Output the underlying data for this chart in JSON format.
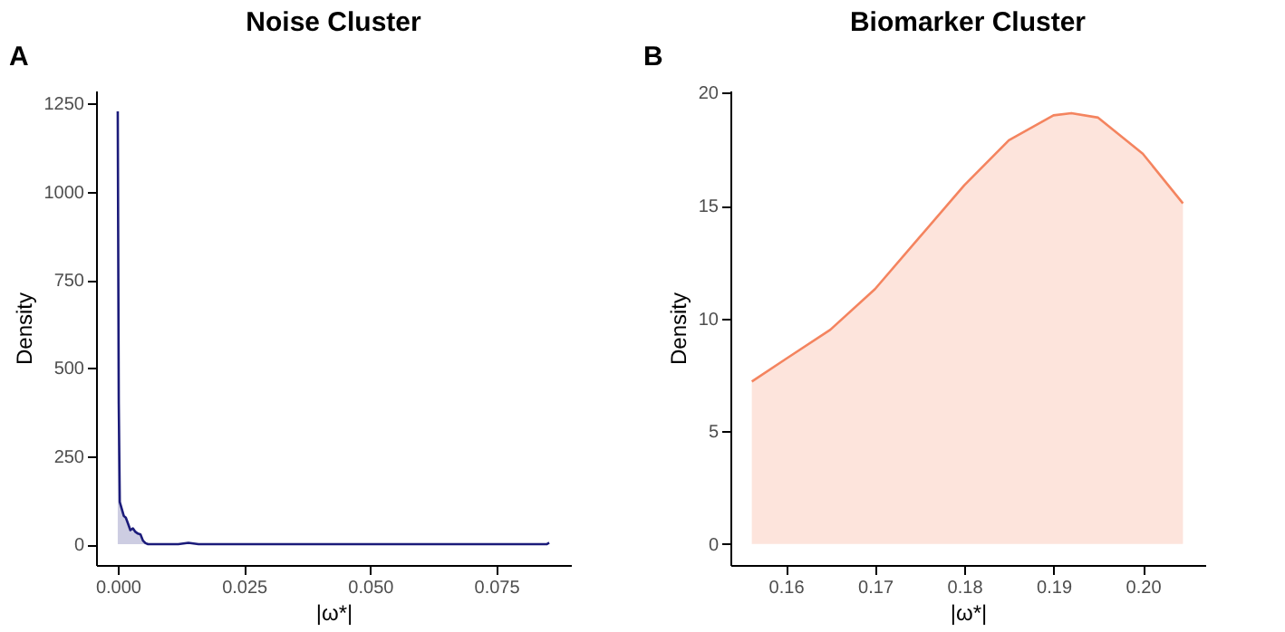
{
  "chart_data": [
    {
      "type": "area",
      "title": "Noise Cluster",
      "xlabel": "|ω*|",
      "ylabel": "Density",
      "annotations": [
        "A"
      ],
      "x": [
        0.0,
        0.0002,
        0.0004,
        0.0008,
        0.0012,
        0.0016,
        0.002,
        0.0025,
        0.003,
        0.0035,
        0.004,
        0.0045,
        0.005,
        0.0055,
        0.006,
        0.008,
        0.012,
        0.014,
        0.016,
        0.03,
        0.05,
        0.07,
        0.085,
        0.0855
      ],
      "series": [
        {
          "color": "#1b1b7a",
          "values": [
            1228,
            400,
            120,
            100,
            80,
            75,
            60,
            40,
            45,
            35,
            30,
            28,
            10,
            3,
            0,
            0,
            0,
            4,
            0,
            0,
            0,
            0,
            0,
            4
          ]
        }
      ],
      "xlim": [
        -0.0043,
        0.0898
      ],
      "xticks": [
        {
          "value": 0,
          "label": "0.000"
        },
        0.025,
        {
          "value": 0.05,
          "label": "0.050"
        },
        0.075
      ],
      "ylim": [
        -59,
        1287
      ],
      "yticks": [
        0,
        250,
        500,
        750,
        1000,
        1250
      ],
      "grid": false
    },
    {
      "type": "area",
      "title": "Biomarker Cluster",
      "xlabel": "|ω*|",
      "ylabel": "Density",
      "annotations": [
        "B"
      ],
      "x": [
        0.1562,
        0.16,
        0.165,
        0.17,
        0.175,
        0.18,
        0.185,
        0.19,
        0.192,
        0.195,
        0.2,
        0.2045
      ],
      "series": [
        {
          "color": "#f4845f",
          "values": [
            7.2,
            8.2,
            9.5,
            11.3,
            13.6,
            15.9,
            17.9,
            19.0,
            19.1,
            18.9,
            17.3,
            15.1
          ]
        }
      ],
      "xlim": [
        0.1538,
        0.207
      ],
      "xticks": [
        0.16,
        0.17,
        0.18,
        0.19,
        {
          "value": 0.2,
          "label": "0.20"
        }
      ],
      "ylim": [
        -0.93,
        20.1
      ],
      "yticks": [
        0,
        5,
        10,
        15,
        20
      ],
      "grid": false
    }
  ]
}
